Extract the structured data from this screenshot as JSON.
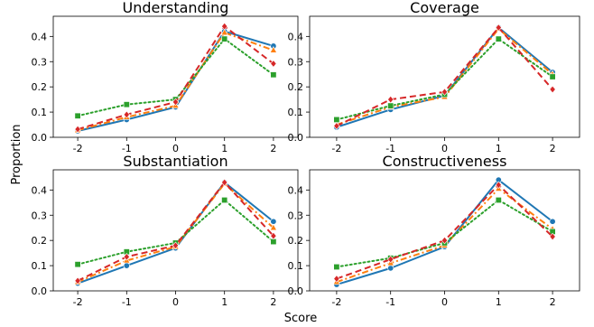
{
  "figure": {
    "xlabel": "Score",
    "ylabel": "Proportion"
  },
  "chart_data": [
    {
      "type": "line",
      "title": "Understanding",
      "x": [
        -2,
        -1,
        0,
        1,
        2
      ],
      "ylim": [
        0,
        0.48
      ],
      "yticks": [
        0.0,
        0.1,
        0.2,
        0.3,
        0.4
      ],
      "series": [
        {
          "color": "#1f77b4",
          "marker": "circle",
          "dash": "solid",
          "values": [
            0.025,
            0.07,
            0.12,
            0.42,
            0.362
          ]
        },
        {
          "color": "#ff7f0e",
          "marker": "triangle",
          "dash": "dashdot",
          "values": [
            0.028,
            0.08,
            0.125,
            0.415,
            0.345
          ]
        },
        {
          "color": "#2ca02c",
          "marker": "square",
          "dash": "dotted",
          "values": [
            0.085,
            0.13,
            0.15,
            0.39,
            0.248
          ]
        },
        {
          "color": "#d62728",
          "marker": "diamond",
          "dash": "dashed",
          "values": [
            0.032,
            0.09,
            0.14,
            0.44,
            0.292
          ]
        }
      ]
    },
    {
      "type": "line",
      "title": "Coverage",
      "x": [
        -2,
        -1,
        0,
        1,
        2
      ],
      "ylim": [
        0,
        0.48
      ],
      "yticks": [
        0.0,
        0.1,
        0.2,
        0.3,
        0.4
      ],
      "series": [
        {
          "color": "#1f77b4",
          "marker": "circle",
          "dash": "solid",
          "values": [
            0.04,
            0.11,
            0.165,
            0.435,
            0.258
          ]
        },
        {
          "color": "#ff7f0e",
          "marker": "triangle",
          "dash": "dashdot",
          "values": [
            0.05,
            0.12,
            0.16,
            0.43,
            0.25
          ]
        },
        {
          "color": "#2ca02c",
          "marker": "square",
          "dash": "dotted",
          "values": [
            0.07,
            0.125,
            0.17,
            0.39,
            0.24
          ]
        },
        {
          "color": "#d62728",
          "marker": "diamond",
          "dash": "dashed",
          "values": [
            0.045,
            0.15,
            0.18,
            0.435,
            0.19
          ]
        }
      ]
    },
    {
      "type": "line",
      "title": "Substantiation",
      "x": [
        -2,
        -1,
        0,
        1,
        2
      ],
      "ylim": [
        0,
        0.48
      ],
      "yticks": [
        0.0,
        0.1,
        0.2,
        0.3,
        0.4
      ],
      "series": [
        {
          "color": "#1f77b4",
          "marker": "circle",
          "dash": "solid",
          "values": [
            0.03,
            0.1,
            0.17,
            0.43,
            0.275
          ]
        },
        {
          "color": "#ff7f0e",
          "marker": "triangle",
          "dash": "dashdot",
          "values": [
            0.035,
            0.12,
            0.175,
            0.425,
            0.25
          ]
        },
        {
          "color": "#2ca02c",
          "marker": "square",
          "dash": "dotted",
          "values": [
            0.105,
            0.155,
            0.19,
            0.36,
            0.195
          ]
        },
        {
          "color": "#d62728",
          "marker": "diamond",
          "dash": "dashed",
          "values": [
            0.04,
            0.135,
            0.18,
            0.43,
            0.218
          ]
        }
      ]
    },
    {
      "type": "line",
      "title": "Constructiveness",
      "x": [
        -2,
        -1,
        0,
        1,
        2
      ],
      "ylim": [
        0,
        0.48
      ],
      "yticks": [
        0.0,
        0.1,
        0.2,
        0.3,
        0.4
      ],
      "series": [
        {
          "color": "#1f77b4",
          "marker": "circle",
          "dash": "solid",
          "values": [
            0.025,
            0.09,
            0.175,
            0.44,
            0.275
          ]
        },
        {
          "color": "#ff7f0e",
          "marker": "triangle",
          "dash": "dashdot",
          "values": [
            0.035,
            0.11,
            0.18,
            0.405,
            0.245
          ]
        },
        {
          "color": "#2ca02c",
          "marker": "square",
          "dash": "dotted",
          "values": [
            0.095,
            0.13,
            0.19,
            0.36,
            0.235
          ]
        },
        {
          "color": "#d62728",
          "marker": "diamond",
          "dash": "dashed",
          "values": [
            0.048,
            0.125,
            0.2,
            0.42,
            0.215
          ]
        }
      ]
    }
  ]
}
